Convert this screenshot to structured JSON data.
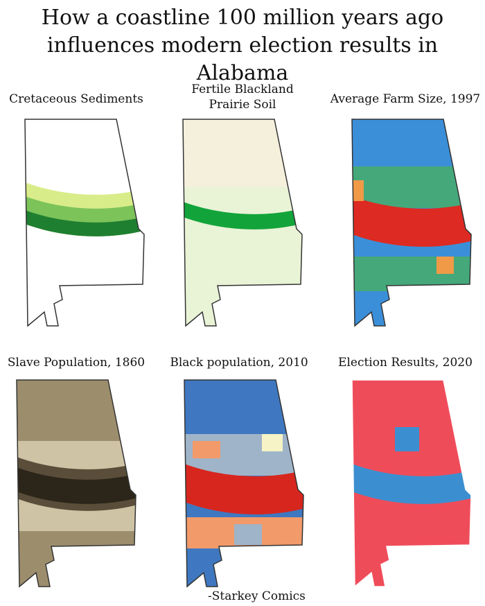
{
  "title_line1": "How a coastline 100 million years ago",
  "title_line2": "influences modern election results in Alabama",
  "panels": [
    {
      "caption": "Cretaceous Sediments",
      "colors": [
        "#ffffff",
        "#d9ec8a",
        "#7cc35a",
        "#1f7f30"
      ]
    },
    {
      "caption_line1": "Fertile Blackland",
      "caption_line2": "Prairie Soil",
      "colors": [
        "#f5f0dc",
        "#e9f3d6",
        "#12a43a"
      ]
    },
    {
      "caption": "Average Farm Size, 1997",
      "colors": [
        "#3b8fd9",
        "#45a87a",
        "#f09a48",
        "#dd2a22"
      ]
    },
    {
      "caption": "Slave Population, 1860",
      "colors": [
        "#cfc3a5",
        "#9c8d6c",
        "#5a4e3a",
        "#2c2519"
      ]
    },
    {
      "caption": "Black population, 2010",
      "colors": [
        "#3f78c0",
        "#9fb4c8",
        "#f6f3c6",
        "#f29a6a",
        "#d7261e"
      ]
    },
    {
      "caption": "Election Results, 2020",
      "colors": [
        "#ef4c5a",
        "#3b8fd0"
      ]
    }
  ],
  "credit": "-Starkey Comics"
}
